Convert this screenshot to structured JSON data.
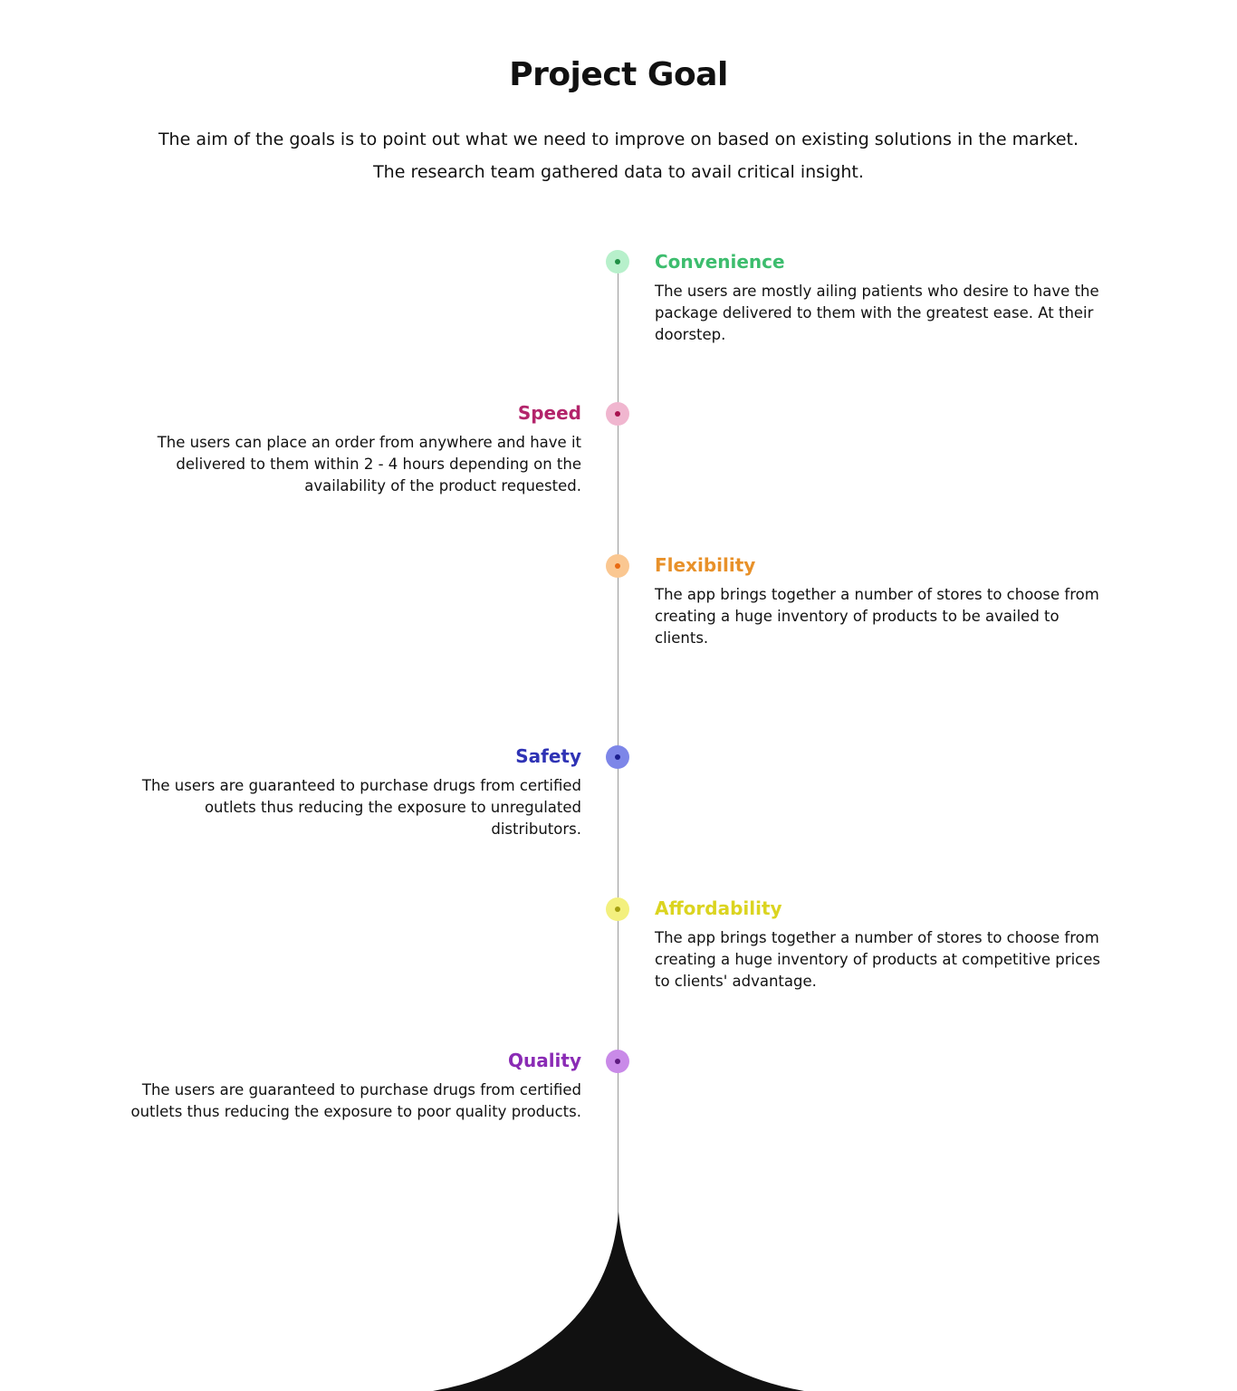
{
  "header": {
    "title": "Project Goal",
    "intro": "The aim of the goals is to point out what we need to improve on based on existing solutions in the market. The research team gathered data to avail critical insight."
  },
  "goals": [
    {
      "title": "Convenience",
      "description": "The users are mostly ailing patients who desire to have the package delivered to them with the greatest ease. At their doorstep.",
      "color": "#3dbd6e",
      "dot_color": "#b7f0cb",
      "core_color": "#1f8f45"
    },
    {
      "title": "Speed",
      "description": "The users can place an order from anywhere and have it delivered to them within 2 - 4 hours depending on the availability of the product requested.",
      "color": "#b3246b",
      "dot_color": "#f0b6cf",
      "core_color": "#a8124f"
    },
    {
      "title": "Flexibility",
      "description": "The app brings together a number of stores to choose from creating a huge inventory of products to be availed to clients.",
      "color": "#e8912a",
      "dot_color": "#fac791",
      "core_color": "#e86a12"
    },
    {
      "title": "Safety",
      "description": "The users are guaranteed to purchase drugs from certified outlets thus reducing the exposure to unregulated distributors.",
      "color": "#2f33b5",
      "dot_color": "#7d86e8",
      "core_color": "#1b1f8f"
    },
    {
      "title": "Affordability",
      "description": "The app brings together a number of stores to choose from creating a huge inventory of products at competitive prices to clients' advantage.",
      "color": "#dbd420",
      "dot_color": "#f3f07e",
      "core_color": "#a5a010"
    },
    {
      "title": "Quality",
      "description": "The users are guaranteed to purchase drugs from certified outlets thus reducing the exposure to poor quality products.",
      "color": "#8a2bb5",
      "dot_color": "#c98ae8",
      "core_color": "#5e1b80"
    }
  ]
}
